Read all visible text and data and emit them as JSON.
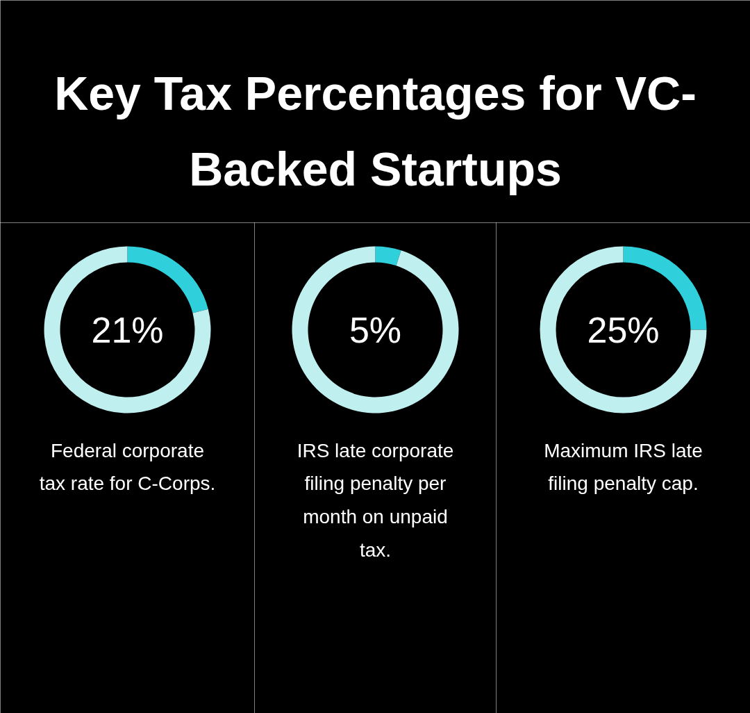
{
  "chart_data": [
    {
      "type": "other",
      "title": "Key Tax Percentages for VC-Backed Startups"
    },
    {
      "type": "donut",
      "categories": [
        null,
        null
      ],
      "values": [
        21,
        79
      ],
      "colors": [
        "#2fd0dc",
        "#c0eff0"
      ],
      "value_labels": [
        "21%",
        null
      ],
      "annotations": [
        "Federal corporate tax rate for C-Corps."
      ]
    },
    {
      "type": "donut",
      "categories": [
        null,
        null
      ],
      "values": [
        5,
        95
      ],
      "colors": [
        "#2fd0dc",
        "#c0eff0"
      ],
      "value_labels": [
        "5%",
        null
      ],
      "annotations": [
        "IRS late corporate filing penalty per month on unpaid tax."
      ]
    },
    {
      "type": "donut",
      "categories": [
        null,
        null
      ],
      "values": [
        25,
        75
      ],
      "colors": [
        "#2fd0dc",
        "#c0eff0"
      ],
      "value_labels": [
        "25%",
        null
      ],
      "annotations": [
        "Maximum IRS late filing penalty cap."
      ]
    }
  ]
}
